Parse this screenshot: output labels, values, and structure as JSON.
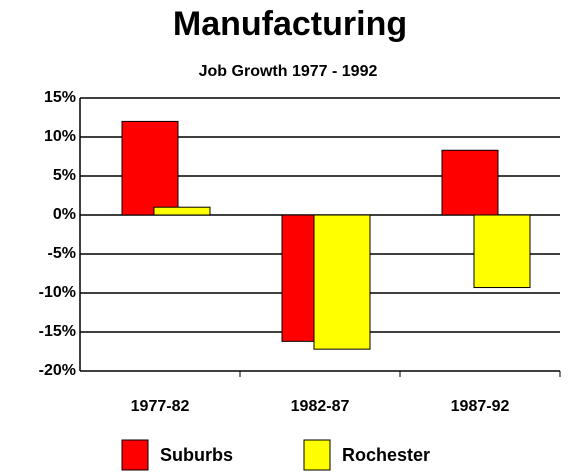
{
  "chart_data": {
    "type": "bar",
    "title": "Manufacturing",
    "subtitle": "Job Growth 1977 - 1992",
    "categories": [
      "1977-82",
      "1982-87",
      "1987-92"
    ],
    "series": [
      {
        "name": "Suburbs",
        "color": "#ff0000",
        "values": [
          12,
          -16.2,
          8.3
        ]
      },
      {
        "name": "Rochester",
        "color": "#ffff00",
        "values": [
          1,
          -17.2,
          -9.3
        ]
      }
    ],
    "ylim": [
      -20,
      15
    ],
    "yticks": [
      {
        "value": -20,
        "label": "-20%"
      },
      {
        "value": -15,
        "label": "-15%"
      },
      {
        "value": -10,
        "label": "-10%"
      },
      {
        "value": -5,
        "label": "-5%"
      },
      {
        "value": 0,
        "label": "0%"
      },
      {
        "value": 5,
        "label": "5%"
      },
      {
        "value": 10,
        "label": "10%"
      },
      {
        "value": 15,
        "label": "15%"
      }
    ],
    "grid": true
  }
}
